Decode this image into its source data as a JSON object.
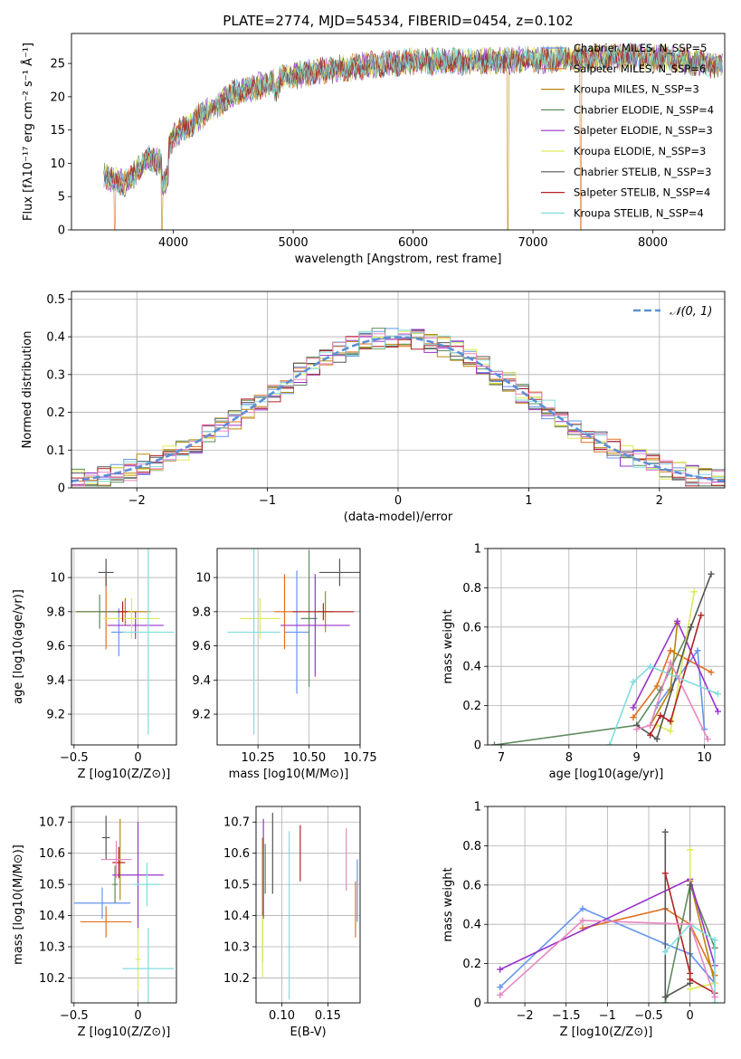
{
  "chart_data": [
    {
      "type": "line",
      "id": "spectrum",
      "title": "PLATE=2774, MJD=54534, FIBERID=0454, z=0.102",
      "xlabel": "wavelength [Angstrom, rest frame]",
      "ylabel": "Flux [fλ10⁻¹⁷ erg cm⁻² s⁻¹ Å⁻¹]",
      "xlim": [
        3150,
        8600
      ],
      "ylim": [
        0,
        29.5
      ],
      "xticks": [
        4000,
        5000,
        6000,
        7000,
        8000
      ],
      "yticks": [
        0,
        5,
        10,
        15,
        20,
        25
      ],
      "legend_position": "upper-right",
      "continuum": {
        "x": [
          3420,
          3600,
          3800,
          3900,
          4000,
          4150,
          4300,
          4500,
          4700,
          4900,
          5100,
          5300,
          5500,
          5800,
          6000,
          6300,
          6600,
          6900,
          7200,
          7500,
          7800,
          8100,
          8400,
          8580
        ],
        "y": [
          8.0,
          7.0,
          11.0,
          10.0,
          14.0,
          16.0,
          18.0,
          20.5,
          21.5,
          22.8,
          23.5,
          24.0,
          24.5,
          25.0,
          25.3,
          25.3,
          25.3,
          25.5,
          25.6,
          25.8,
          26.0,
          25.8,
          25.0,
          24.5
        ]
      },
      "dropouts": [
        3510,
        3905,
        6790,
        7400
      ],
      "series": [
        {
          "name": "Chabrier MILES, N_SSP=5",
          "color": "#6495ED"
        },
        {
          "name": "Salpeter MILES, N_SSP=6",
          "color": "#E07020"
        },
        {
          "name": "Kroupa MILES, N_SSP=3",
          "color": "#B8860B"
        },
        {
          "name": "Chabrier ELODIE, N_SSP=4",
          "color": "#5E8B5E"
        },
        {
          "name": "Salpeter ELODIE, N_SSP=3",
          "color": "#9932CC"
        },
        {
          "name": "Kroupa ELODIE, N_SSP=3",
          "color": "#DDEB5A"
        },
        {
          "name": "Chabrier STELIB, N_SSP=3",
          "color": "#555555"
        },
        {
          "name": "Salpeter STELIB, N_SSP=4",
          "color": "#B22222"
        },
        {
          "name": "Kroupa STELIB, N_SSP=4",
          "color": "#7FDDDD"
        }
      ]
    },
    {
      "type": "histogram",
      "id": "residuals",
      "xlabel": "(data-model)/error",
      "ylabel": "Normed distribution",
      "xlim": [
        -2.5,
        2.5
      ],
      "ylim": [
        0,
        0.52
      ],
      "xticks": [
        -2,
        -1,
        0,
        1,
        2
      ],
      "yticks": [
        0.0,
        0.1,
        0.2,
        0.3,
        0.4,
        0.5
      ],
      "grid": true,
      "legend": "𝒩(0, 1)",
      "legend_position": "upper-right",
      "bin_width": 0.1
    },
    {
      "type": "scatter",
      "id": "age-vs-Z",
      "xlabel": "Z [log10(Z/Z⊙)]",
      "ylabel": "age [log10(age/yr)]",
      "xlim": [
        -0.52,
        0.3
      ],
      "ylim": [
        9.02,
        10.17
      ],
      "xticks": [
        -0.5,
        0.0
      ],
      "yticks": [
        9.2,
        9.4,
        9.6,
        9.8,
        10.0
      ],
      "grid": true,
      "points": [
        {
          "x": -0.15,
          "y": 9.68,
          "xerr": 0.06,
          "yerr": 0.14,
          "color": "#6495ED"
        },
        {
          "x": -0.25,
          "y": 9.8,
          "xerr": 0.24,
          "yerr": 0.22,
          "color": "#E07020"
        },
        {
          "x": -0.1,
          "y": 9.8,
          "xerr": 0.2,
          "yerr": 0.08,
          "color": "#B8860B"
        },
        {
          "x": -0.3,
          "y": 9.8,
          "xerr": 0.18,
          "yerr": 0.1,
          "color": "#5E8B5E"
        },
        {
          "x": -0.02,
          "y": 9.72,
          "xerr": 0.22,
          "yerr": 0.08,
          "color": "#9932CC"
        },
        {
          "x": -0.05,
          "y": 9.76,
          "xerr": 0.22,
          "yerr": 0.12,
          "color": "#DDEB5A"
        },
        {
          "x": -0.25,
          "y": 10.03,
          "xerr": 0.06,
          "yerr": 0.08,
          "color": "#555555"
        },
        {
          "x": -0.12,
          "y": 9.8,
          "xerr": 0.04,
          "yerr": 0.06,
          "color": "#B22222"
        },
        {
          "x": 0.08,
          "y": 9.68,
          "xerr": 0.2,
          "yerr": 0.6,
          "color": "#7FDDDD"
        }
      ]
    },
    {
      "type": "scatter",
      "id": "age-vs-mass",
      "xlabel": "mass [log10(M/M⊙)]",
      "ylabel": "",
      "xlim": [
        10.05,
        10.75
      ],
      "ylim": [
        9.02,
        10.17
      ],
      "xticks": [
        10.25,
        10.5,
        10.75
      ],
      "xticklabels": [
        "10.25",
        "10.50",
        "10.75"
      ],
      "yticks": [
        9.2,
        9.4,
        9.6,
        9.8,
        10.0
      ],
      "grid": true,
      "points": [
        {
          "x": 10.44,
          "y": 9.68,
          "xerr": 0.06,
          "yerr": 0.36,
          "color": "#6495ED"
        },
        {
          "x": 10.38,
          "y": 9.8,
          "xerr": 0.05,
          "yerr": 0.22,
          "color": "#E07020"
        },
        {
          "x": 10.58,
          "y": 9.8,
          "xerr": 0.04,
          "yerr": 0.12,
          "color": "#B8860B"
        },
        {
          "x": 10.5,
          "y": 9.76,
          "xerr": 0.04,
          "yerr": 0.4,
          "color": "#5E8B5E"
        },
        {
          "x": 10.53,
          "y": 9.72,
          "xerr": 0.17,
          "yerr": 0.3,
          "color": "#9932CC"
        },
        {
          "x": 10.26,
          "y": 9.76,
          "xerr": 0.1,
          "yerr": 0.12,
          "color": "#DDEB5A"
        },
        {
          "x": 10.65,
          "y": 10.03,
          "xerr": 0.1,
          "yerr": 0.08,
          "color": "#555555"
        },
        {
          "x": 10.57,
          "y": 9.8,
          "xerr": 0.15,
          "yerr": 0.05,
          "color": "#B22222"
        },
        {
          "x": 10.23,
          "y": 9.68,
          "xerr": 0.13,
          "yerr": 0.6,
          "color": "#7FDDDD"
        }
      ]
    },
    {
      "type": "line",
      "id": "weight-vs-age",
      "xlabel": "age  [log10(age/yr)]",
      "ylabel": "mass weight",
      "xlim": [
        6.8,
        10.3
      ],
      "ylim": [
        0.0,
        1.0
      ],
      "xticks": [
        7,
        8,
        9,
        10
      ],
      "yticks": [
        0.0,
        0.2,
        0.4,
        0.6,
        0.8,
        1.0
      ],
      "grid": true,
      "series": [
        {
          "color": "#6495ED",
          "x": [
            9.2,
            9.3,
            9.9,
            10.0
          ],
          "y": [
            0.1,
            0.2,
            0.48,
            0.08
          ]
        },
        {
          "color": "#E07020",
          "x": [
            8.95,
            9.3,
            9.5,
            10.1
          ],
          "y": [
            0.14,
            0.3,
            0.48,
            0.37
          ]
        },
        {
          "color": "#B8860B",
          "x": [
            9.2,
            9.5,
            9.6
          ],
          "y": [
            0.1,
            0.28,
            0.62
          ]
        },
        {
          "color": "#5E8B5E",
          "x": [
            6.9,
            9.0,
            9.35,
            9.8
          ],
          "y": [
            0.0,
            0.1,
            0.28,
            0.6
          ]
        },
        {
          "color": "#9932CC",
          "x": [
            8.95,
            9.6,
            10.2
          ],
          "y": [
            0.19,
            0.63,
            0.17
          ]
        },
        {
          "color": "#DDEB5A",
          "x": [
            9.3,
            9.5,
            9.85
          ],
          "y": [
            0.1,
            0.07,
            0.78
          ]
        },
        {
          "color": "#555555",
          "x": [
            9.0,
            9.3,
            9.8,
            10.1
          ],
          "y": [
            0.1,
            0.03,
            0.6,
            0.87
          ]
        },
        {
          "color": "#B22222",
          "x": [
            9.2,
            9.35,
            9.5,
            9.95
          ],
          "y": [
            0.05,
            0.15,
            0.12,
            0.66
          ]
        },
        {
          "color": "#7FDDDD",
          "x": [
            8.6,
            8.95,
            9.2,
            10.2
          ],
          "y": [
            0.0,
            0.32,
            0.4,
            0.26
          ]
        },
        {
          "color": "#E887C0",
          "x": [
            9.0,
            9.2,
            9.5,
            10.05
          ],
          "y": [
            0.08,
            0.1,
            0.42,
            0.03
          ]
        }
      ]
    },
    {
      "type": "scatter",
      "id": "mass-vs-Z",
      "xlabel": "Z [log10(Z/Z⊙)]",
      "ylabel": "mass [log10(M/M⊙)]",
      "xlim": [
        -0.52,
        0.3
      ],
      "ylim": [
        10.12,
        10.75
      ],
      "xticks": [
        -0.5,
        0.0
      ],
      "yticks": [
        10.2,
        10.3,
        10.4,
        10.5,
        10.6,
        10.7
      ],
      "grid": true,
      "points": [
        {
          "x": -0.28,
          "y": 10.44,
          "xerr": 0.22,
          "yerr": 0.05,
          "color": "#6495ED"
        },
        {
          "x": -0.25,
          "y": 10.38,
          "xerr": 0.2,
          "yerr": 0.05,
          "color": "#E07020"
        },
        {
          "x": -0.14,
          "y": 10.58,
          "xerr": 0.02,
          "yerr": 0.13,
          "color": "#B8860B"
        },
        {
          "x": -0.18,
          "y": 10.5,
          "xerr": 0.02,
          "yerr": 0.06,
          "color": "#5E8B5E"
        },
        {
          "x": 0.0,
          "y": 10.53,
          "xerr": 0.2,
          "yerr": 0.17,
          "color": "#9932CC"
        },
        {
          "x": 0.0,
          "y": 10.26,
          "xerr": 0.02,
          "yerr": 0.1,
          "color": "#DDEB5A"
        },
        {
          "x": -0.25,
          "y": 10.65,
          "xerr": 0.03,
          "yerr": 0.07,
          "color": "#555555"
        },
        {
          "x": -0.15,
          "y": 10.57,
          "xerr": 0.05,
          "yerr": 0.05,
          "color": "#B22222"
        },
        {
          "x": 0.08,
          "y": 10.23,
          "xerr": 0.2,
          "yerr": 0.13,
          "color": "#7FDDDD"
        },
        {
          "x": -0.17,
          "y": 10.58,
          "xerr": 0.12,
          "yerr": 0.06,
          "color": "#E887C0"
        },
        {
          "x": 0.07,
          "y": 10.5,
          "xerr": 0.1,
          "yerr": 0.07,
          "color": "#7FDDDD"
        }
      ]
    },
    {
      "type": "scatter",
      "id": "mass-vs-EBV",
      "xlabel": "E(B-V)",
      "ylabel": "",
      "xlim": [
        0.072,
        0.185
      ],
      "ylim": [
        10.12,
        10.75
      ],
      "xticks": [
        0.1,
        0.15
      ],
      "xticklabels": [
        "0.10",
        "0.15"
      ],
      "yticks": [
        10.2,
        10.3,
        10.4,
        10.5,
        10.6,
        10.7
      ],
      "grid": true,
      "points": [
        {
          "x": 0.182,
          "y": 10.48,
          "yerr": 0.1,
          "color": "#6495ED"
        },
        {
          "x": 0.18,
          "y": 10.42,
          "yerr": 0.09,
          "color": "#E07020"
        },
        {
          "x": 0.079,
          "y": 10.45,
          "yerr": 0.2,
          "color": "#B8860B"
        },
        {
          "x": 0.082,
          "y": 10.55,
          "yerr": 0.08,
          "color": "#5E8B5E"
        },
        {
          "x": 0.08,
          "y": 10.55,
          "yerr": 0.16,
          "color": "#9932CC"
        },
        {
          "x": 0.079,
          "y": 10.3,
          "yerr": 0.1,
          "color": "#DDEB5A"
        },
        {
          "x": 0.09,
          "y": 10.6,
          "yerr": 0.13,
          "color": "#555555"
        },
        {
          "x": 0.12,
          "y": 10.6,
          "yerr": 0.09,
          "color": "#B22222"
        },
        {
          "x": 0.108,
          "y": 10.4,
          "yerr": 0.27,
          "color": "#7FDDDD"
        },
        {
          "x": 0.17,
          "y": 10.58,
          "yerr": 0.1,
          "color": "#E887C0"
        }
      ]
    },
    {
      "type": "line",
      "id": "weight-vs-Z",
      "xlabel": "Z [log10(Z/Z⊙)]",
      "ylabel": "mass weight",
      "xlim": [
        -2.45,
        0.42
      ],
      "ylim": [
        0.0,
        1.0
      ],
      "xticks": [
        -2.0,
        -1.5,
        -1.0,
        -0.5,
        0.0
      ],
      "yticks": [
        0.0,
        0.2,
        0.4,
        0.6,
        0.8,
        1.0
      ],
      "grid": true,
      "series": [
        {
          "color": "#6495ED",
          "x": [
            -2.3,
            -1.3,
            -0.3,
            0.0,
            0.3
          ],
          "y": [
            0.08,
            0.48,
            0.3,
            0.25,
            0.1
          ]
        },
        {
          "color": "#E07020",
          "x": [
            -1.3,
            -0.3,
            0.0,
            0.3
          ],
          "y": [
            0.38,
            0.48,
            0.4,
            0.14
          ]
        },
        {
          "color": "#B8860B",
          "x": [
            0.0,
            0.3
          ],
          "y": [
            0.62,
            0.1
          ]
        },
        {
          "color": "#5E8B5E",
          "x": [
            -0.3,
            0.0,
            0.3
          ],
          "y": [
            0.0,
            0.6,
            0.28
          ]
        },
        {
          "color": "#9932CC",
          "x": [
            -2.3,
            0.0,
            0.3
          ],
          "y": [
            0.17,
            0.63,
            0.19
          ]
        },
        {
          "color": "#DDEB5A",
          "x": [
            0.0,
            0.0,
            0.3
          ],
          "y": [
            0.78,
            0.07,
            0.1
          ]
        },
        {
          "color": "#555555",
          "x": [
            -0.3,
            -0.3,
            0.0,
            0.0
          ],
          "y": [
            0.87,
            0.03,
            0.1,
            0.6
          ]
        },
        {
          "color": "#B22222",
          "x": [
            -0.3,
            0.0,
            0.0,
            0.3
          ],
          "y": [
            0.66,
            0.15,
            0.12,
            0.05
          ]
        },
        {
          "color": "#7FDDDD",
          "x": [
            -0.3,
            0.0,
            0.3,
            0.3
          ],
          "y": [
            0.26,
            0.4,
            0.32,
            0.0
          ]
        },
        {
          "color": "#E887C0",
          "x": [
            -2.3,
            -1.3,
            0.0,
            0.3
          ],
          "y": [
            0.04,
            0.42,
            0.4,
            0.03
          ]
        }
      ]
    }
  ]
}
